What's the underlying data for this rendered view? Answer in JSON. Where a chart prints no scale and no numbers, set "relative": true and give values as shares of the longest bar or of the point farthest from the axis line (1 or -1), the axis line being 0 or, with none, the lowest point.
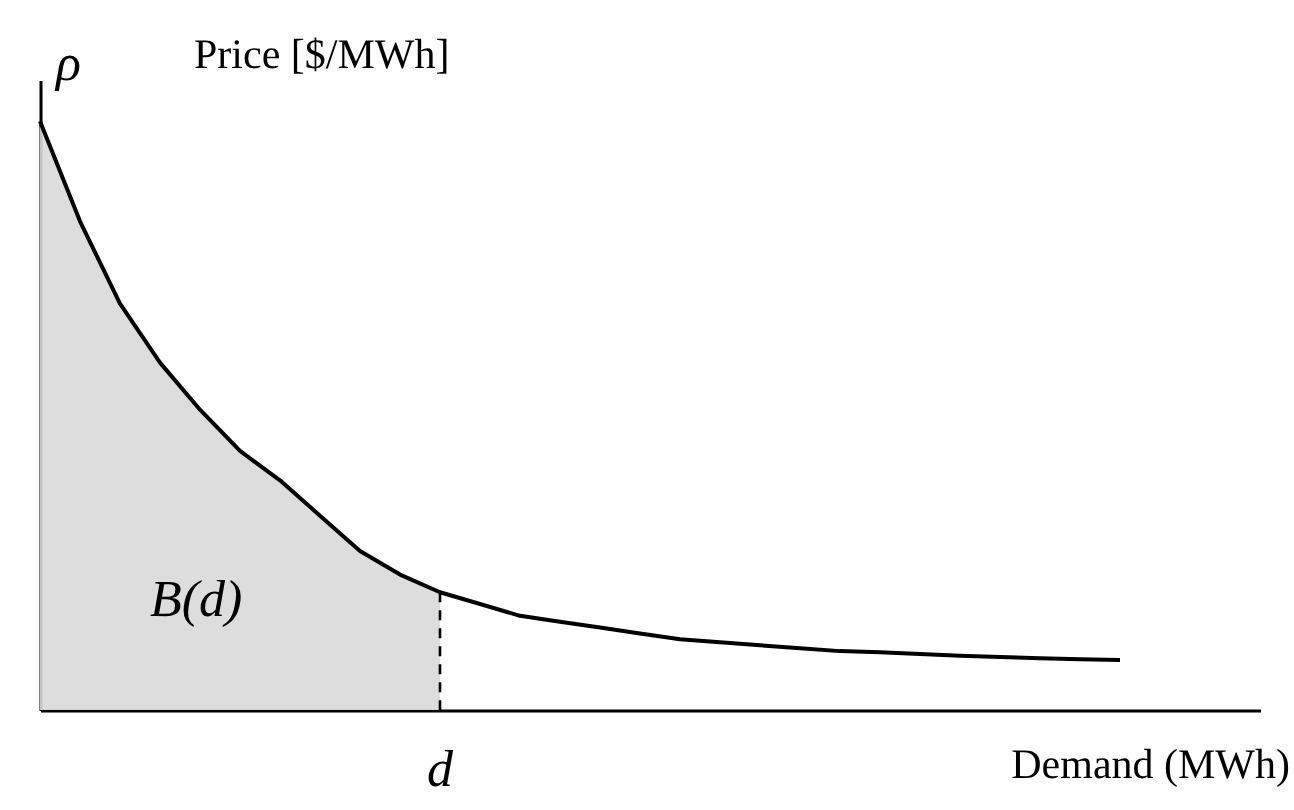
{
  "chart_data": {
    "type": "line",
    "relative": true,
    "title": "Price [$/MWh]",
    "ylabel": "ρ",
    "xlabel": "Demand (MWh)",
    "categories": [
      null,
      null,
      null,
      null,
      null,
      null,
      null,
      null,
      null,
      null,
      null,
      null,
      null,
      null,
      null,
      null,
      null,
      null,
      null,
      null,
      null,
      null,
      null,
      null,
      null,
      null,
      null,
      null
    ],
    "series": [
      {
        "type": "area",
        "color": "#d9d9d9",
        "values": [
          1.0,
          0.83,
          0.69,
          0.59,
          0.51,
          0.44,
          0.39,
          0.33,
          0.27,
          0.23,
          0.2,
          null,
          null,
          null,
          null,
          null,
          null,
          null,
          null,
          null,
          null,
          null,
          null,
          null,
          null,
          null,
          null,
          null
        ]
      },
      {
        "color": "#000000",
        "values": [
          1.0,
          0.83,
          0.69,
          0.59,
          0.51,
          0.44,
          0.39,
          0.33,
          0.27,
          0.23,
          0.2,
          0.18,
          0.16,
          0.15,
          0.14,
          0.13,
          0.12,
          0.115,
          0.11,
          0.105,
          0.1,
          0.098,
          0.095,
          0.092,
          0.09,
          0.088,
          0.086,
          0.085
        ]
      }
    ],
    "annotations": [
      "B(d)",
      "d"
    ],
    "marker": "none",
    "line_style": "solid"
  }
}
